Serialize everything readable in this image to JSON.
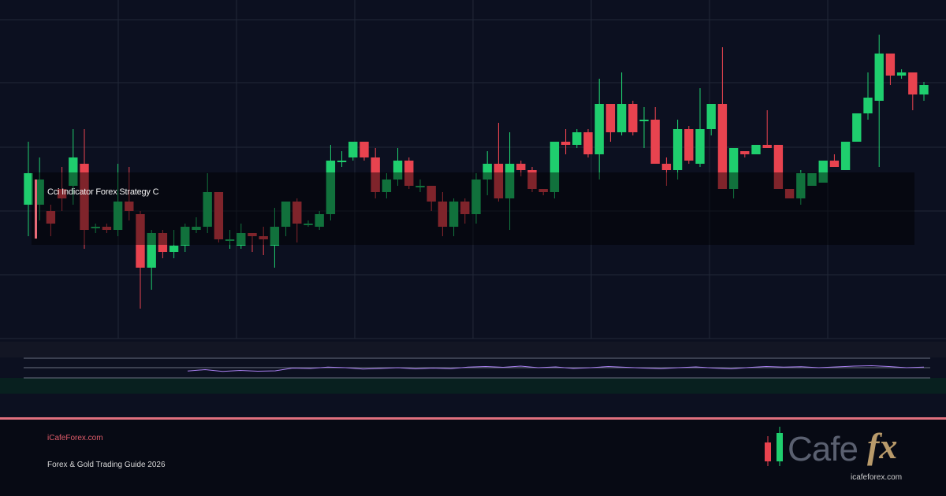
{
  "overlay": {
    "title": "Cci Indicator Forex Strategy C"
  },
  "footer": {
    "site": "iCafeForex.com",
    "guide": "Forex & Gold Trading Guide 2026"
  },
  "logo": {
    "brand": "Cafe",
    "suffix": "fx",
    "url": "icafeforex.com"
  },
  "colors": {
    "up": "#1fce6e",
    "down": "#e8434f",
    "grid": "#222838",
    "indicator": "#a87ff0",
    "accent": "#e0707e"
  },
  "chart_data": {
    "type": "candlestick",
    "price_range": [
      0,
      100
    ],
    "grid": true,
    "candles": [
      [
        40,
        50,
        30,
        60
      ],
      [
        40,
        48,
        35,
        55
      ],
      [
        38,
        34,
        30,
        40
      ],
      [
        45,
        42,
        38,
        52
      ],
      [
        46,
        55,
        40,
        64
      ],
      [
        53,
        32,
        26,
        64
      ],
      [
        33,
        33,
        31,
        34
      ],
      [
        33,
        32,
        31,
        34
      ],
      [
        32,
        41,
        30,
        53
      ],
      [
        41,
        38,
        35,
        52
      ],
      [
        37,
        20,
        7,
        38
      ],
      [
        20,
        31,
        13,
        32
      ],
      [
        31,
        25,
        23,
        32
      ],
      [
        25,
        27,
        23,
        32
      ],
      [
        27,
        33,
        25,
        34
      ],
      [
        32,
        33,
        31,
        36
      ],
      [
        33,
        44,
        31,
        50
      ],
      [
        44,
        29,
        28,
        44
      ],
      [
        29,
        29,
        26,
        32
      ],
      [
        27,
        31,
        26,
        34
      ],
      [
        31,
        30,
        25,
        31
      ],
      [
        30,
        29,
        24,
        33
      ],
      [
        27,
        33,
        20,
        39
      ],
      [
        33,
        41,
        30,
        41
      ],
      [
        41,
        34,
        28,
        42
      ],
      [
        34,
        34,
        33,
        35
      ],
      [
        33,
        37,
        32,
        38
      ],
      [
        37,
        54,
        35,
        59
      ],
      [
        54,
        54,
        52,
        57
      ],
      [
        55,
        60,
        54,
        60
      ],
      [
        60,
        55,
        54,
        60
      ],
      [
        55,
        44,
        42,
        58
      ],
      [
        44,
        48,
        42,
        50
      ],
      [
        48,
        54,
        46,
        58
      ],
      [
        54,
        46,
        45,
        55
      ],
      [
        46,
        46,
        44,
        48
      ],
      [
        46,
        41,
        38,
        46
      ],
      [
        41,
        33,
        30,
        44
      ],
      [
        33,
        41,
        30,
        42
      ],
      [
        41,
        37,
        34,
        42
      ],
      [
        37,
        48,
        34,
        50
      ],
      [
        48,
        53,
        43,
        57
      ],
      [
        53,
        42,
        41,
        66
      ],
      [
        42,
        53,
        32,
        63
      ],
      [
        53,
        51,
        49,
        54
      ],
      [
        51,
        45,
        44,
        52
      ],
      [
        45,
        44,
        43,
        45
      ],
      [
        44,
        60,
        42,
        60
      ],
      [
        60,
        59,
        56,
        64
      ],
      [
        59,
        63,
        58,
        64
      ],
      [
        63,
        56,
        55,
        64
      ],
      [
        56,
        72,
        48,
        80
      ],
      [
        72,
        63,
        60,
        72
      ],
      [
        63,
        72,
        62,
        82
      ],
      [
        72,
        63,
        62,
        73
      ],
      [
        67,
        67,
        58,
        71
      ],
      [
        67,
        53,
        53,
        71
      ],
      [
        53,
        51,
        46,
        55
      ],
      [
        51,
        64,
        48,
        67
      ],
      [
        64,
        54,
        53,
        65
      ],
      [
        53,
        64,
        52,
        77
      ],
      [
        64,
        72,
        62,
        72
      ],
      [
        72,
        45,
        45,
        90
      ],
      [
        45,
        58,
        42,
        58
      ],
      [
        57,
        56,
        55,
        57
      ],
      [
        56,
        59,
        56,
        59
      ],
      [
        59,
        58,
        58,
        70
      ],
      [
        59,
        45,
        45,
        59
      ],
      [
        45,
        42,
        42,
        45
      ],
      [
        42,
        50,
        40,
        51
      ],
      [
        46,
        50,
        46,
        50
      ],
      [
        47,
        54,
        47,
        54
      ],
      [
        54,
        52,
        52,
        56
      ],
      [
        51,
        60,
        51,
        60
      ],
      [
        60,
        69,
        60,
        69
      ],
      [
        69,
        74,
        67,
        82
      ],
      [
        73,
        88,
        52,
        94
      ],
      [
        88,
        81,
        78,
        88
      ],
      [
        81,
        82,
        80,
        83
      ],
      [
        82,
        75,
        70,
        82
      ],
      [
        75,
        78,
        73,
        79
      ]
    ],
    "indicator": {
      "values": [
        35,
        42,
        33,
        38,
        34,
        36,
        50,
        48,
        55,
        52,
        45,
        48,
        52,
        46,
        50,
        47,
        55,
        58,
        54,
        60,
        52,
        56,
        48,
        52,
        58,
        54,
        50,
        47,
        52,
        56,
        50,
        46,
        53,
        58,
        55,
        57,
        52,
        56,
        60,
        62,
        58,
        52,
        55
      ]
    }
  }
}
